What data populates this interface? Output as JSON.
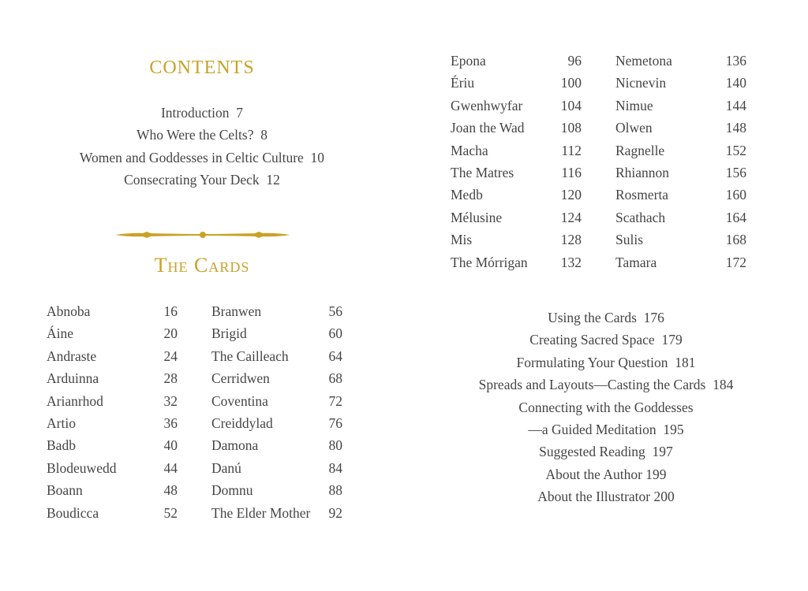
{
  "contents_title": "Contents",
  "intro_entries": [
    "Introduction  7",
    "Who Were the Celts?  8",
    "Women and Goddesses in Celtic Culture  10",
    "Consecrating Your Deck  12"
  ],
  "cards_title": "The Cards",
  "cards": [
    {
      "name": "Abnoba",
      "page": "16"
    },
    {
      "name": "Áine",
      "page": "20"
    },
    {
      "name": "Andraste",
      "page": "24"
    },
    {
      "name": "Arduinna",
      "page": "28"
    },
    {
      "name": "Arianrhod",
      "page": "32"
    },
    {
      "name": "Artio",
      "page": "36"
    },
    {
      "name": "Badb",
      "page": "40"
    },
    {
      "name": "Blodeuwedd",
      "page": "44"
    },
    {
      "name": "Boann",
      "page": "48"
    },
    {
      "name": "Boudicca",
      "page": "52"
    },
    {
      "name": "Branwen",
      "page": "56"
    },
    {
      "name": "Brigid",
      "page": "60"
    },
    {
      "name": "The Cailleach",
      "page": "64"
    },
    {
      "name": "Cerridwen",
      "page": "68"
    },
    {
      "name": "Coventina",
      "page": "72"
    },
    {
      "name": "Creiddylad",
      "page": "76"
    },
    {
      "name": "Damona",
      "page": "80"
    },
    {
      "name": "Danú",
      "page": "84"
    },
    {
      "name": "Domnu",
      "page": "88"
    },
    {
      "name": "The Elder Mother",
      "page": "92"
    },
    {
      "name": "Epona",
      "page": "96"
    },
    {
      "name": "Ériu",
      "page": "100"
    },
    {
      "name": "Gwenhwyfar",
      "page": "104"
    },
    {
      "name": "Joan the Wad",
      "page": "108"
    },
    {
      "name": "Macha",
      "page": "112"
    },
    {
      "name": "The Matres",
      "page": "116"
    },
    {
      "name": "Medb",
      "page": "120"
    },
    {
      "name": "Mélusine",
      "page": "124"
    },
    {
      "name": "Mis",
      "page": "128"
    },
    {
      "name": "The Mórrigan",
      "page": "132"
    },
    {
      "name": "Nemetona",
      "page": "136"
    },
    {
      "name": "Nicnevin",
      "page": "140"
    },
    {
      "name": "Nimue",
      "page": "144"
    },
    {
      "name": "Olwen",
      "page": "148"
    },
    {
      "name": "Ragnelle",
      "page": "152"
    },
    {
      "name": "Rhiannon",
      "page": "156"
    },
    {
      "name": "Rosmerta",
      "page": "160"
    },
    {
      "name": "Scathach",
      "page": "164"
    },
    {
      "name": "Sulis",
      "page": "168"
    },
    {
      "name": "Tamara",
      "page": "172"
    }
  ],
  "back_entries": [
    "Using the Cards  176",
    "Creating Sacred Space  179",
    "Formulating Your Question  181",
    "Spreads and Layouts—Casting the Cards  184",
    "Connecting with the Goddesses",
    "—a Guided Meditation  195",
    "Suggested Reading  197",
    "About the Author 199",
    "About the Illustrator 200"
  ],
  "colors": {
    "accent": "#c9a227",
    "text": "#454545"
  }
}
